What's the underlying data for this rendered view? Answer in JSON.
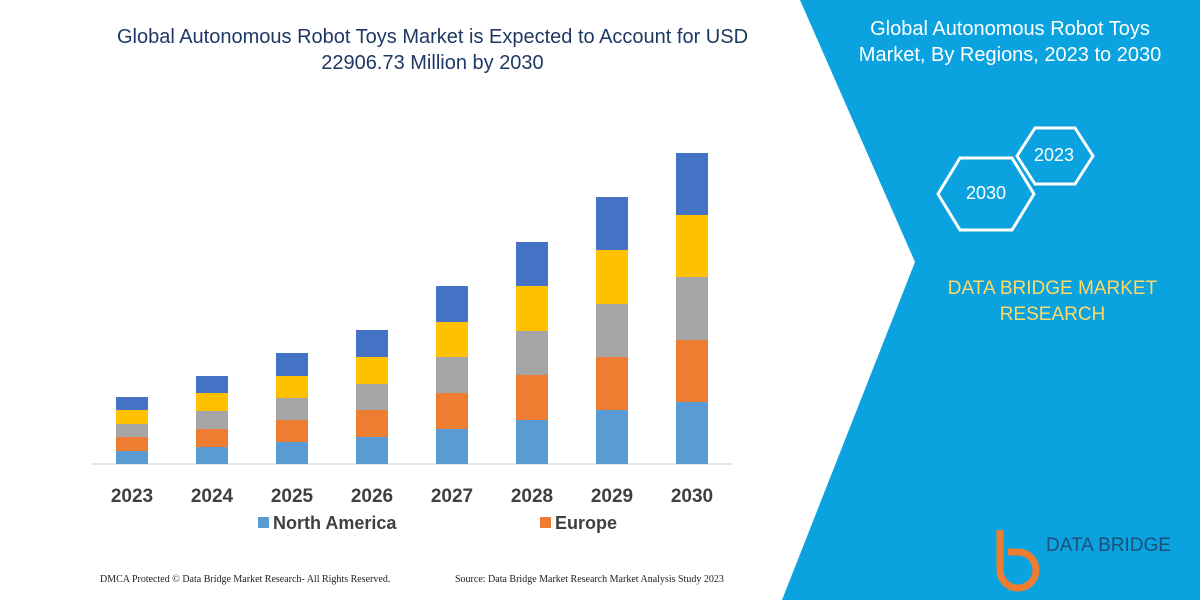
{
  "chart_data": {
    "type": "bar",
    "stacked": true,
    "title": "Global Autonomous Robot Toys Market is Expected to Account for USD 22906.73 Million by 2030",
    "categories": [
      "2023",
      "2024",
      "2025",
      "2026",
      "2027",
      "2028",
      "2029",
      "2030"
    ],
    "series": [
      {
        "name": "North America",
        "color": "#5b9bd5",
        "values": [
          13,
          17,
          22,
          27,
          35,
          44,
          54,
          62
        ]
      },
      {
        "name": "Europe",
        "color": "#ed7d31",
        "values": [
          14,
          18,
          22,
          27,
          36,
          45,
          53,
          62
        ]
      },
      {
        "color": "#a5a5a5",
        "values": [
          13,
          18,
          22,
          26,
          36,
          44,
          53,
          63
        ]
      },
      {
        "color": "#ffc000",
        "values": [
          14,
          18,
          22,
          27,
          35,
          45,
          54,
          62
        ]
      },
      {
        "color": "#4472c4",
        "values": [
          13,
          17,
          23,
          27,
          36,
          44,
          53,
          62
        ]
      }
    ],
    "ylim": [
      0,
      320
    ]
  },
  "panel": {
    "title": "Global Autonomous Robot Toys Market, By Regions, 2023 to 2030",
    "hex_start": "2023",
    "hex_end": "2030",
    "brand": "DATA BRIDGE MARKET RESEARCH"
  },
  "footer": {
    "copyright": "DMCA Protected © Data Bridge Market Research-  All Rights Reserved.",
    "source": "Source: Data Bridge Market Research  Market Analysis Study 2023"
  },
  "logo": {
    "text": "DATA BRIDGE"
  }
}
